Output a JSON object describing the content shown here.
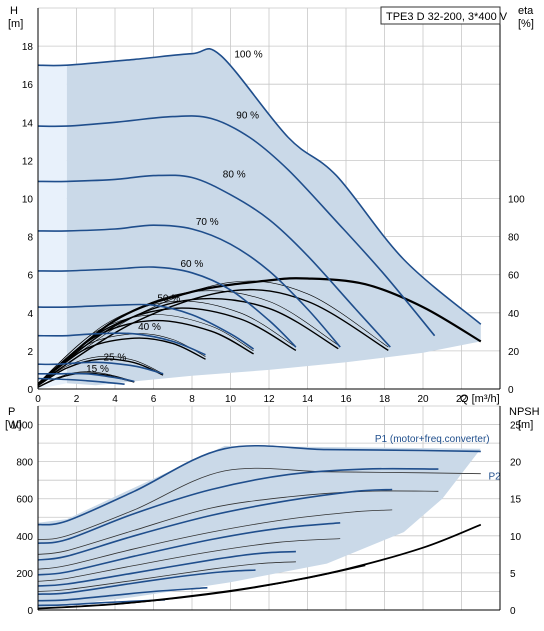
{
  "chart_data": [
    {
      "type": "line",
      "title": "TPE3 D 32-200, 3*400 V",
      "y_label": "H",
      "y_unit": "[m]",
      "y_right_label": "eta",
      "y_right_unit": "[%]",
      "x_label": "Q [m³/h]",
      "xlim": [
        0,
        24
      ],
      "ylim": [
        0,
        20
      ],
      "y_right_lim": [
        0,
        200
      ],
      "x_ticks": [
        "0",
        "2",
        "4",
        "6",
        "8",
        "10",
        "12",
        "14",
        "16",
        "18",
        "20",
        "22"
      ],
      "y_ticks": [
        "0",
        "2",
        "4",
        "6",
        "8",
        "10",
        "12",
        "14",
        "16",
        "18"
      ],
      "y_right_ticks": [
        "0",
        "20",
        "40",
        "60",
        "80",
        "100"
      ],
      "grid": true,
      "region_color": "#cad9e8",
      "region_light_color": "#e8f1fb",
      "curve_color": "#1f4e8c",
      "series": [
        {
          "label": "100 %",
          "label_q": 10.2,
          "label_h": 17.4,
          "x": [
            0,
            1.5,
            5,
            8,
            9.5,
            13,
            15.5,
            19,
            23
          ],
          "y": [
            17.0,
            17.0,
            17.3,
            17.6,
            17.5,
            13.2,
            11.2,
            6.8,
            3.4
          ]
        },
        {
          "label": "90 %",
          "label_q": 10.3,
          "label_h": 14.2,
          "x": [
            0,
            1.5,
            4,
            7,
            9,
            11,
            13,
            15.5,
            18,
            20.6
          ],
          "y": [
            13.8,
            13.8,
            14.0,
            14.3,
            14.2,
            13.2,
            11.5,
            8.8,
            6.0,
            2.8
          ]
        },
        {
          "label": "80 %",
          "label_q": 9.6,
          "label_h": 11.1,
          "x": [
            0,
            1.5,
            4,
            6,
            8,
            10,
            12,
            14,
            16.5,
            18.3
          ],
          "y": [
            10.9,
            10.9,
            11.0,
            11.2,
            11.1,
            10.2,
            8.9,
            7.0,
            4.2,
            2.2
          ]
        },
        {
          "label": "70 %",
          "label_q": 8.2,
          "label_h": 8.6,
          "x": [
            0,
            1.5,
            4,
            6,
            8,
            10,
            12,
            14,
            15.7
          ],
          "y": [
            8.3,
            8.3,
            8.4,
            8.6,
            8.4,
            7.6,
            6.2,
            4.2,
            2.2
          ]
        },
        {
          "label": "60 %",
          "label_q": 7.4,
          "label_h": 6.4,
          "x": [
            0,
            1.5,
            4,
            6,
            8,
            10,
            12,
            13.4
          ],
          "y": [
            6.2,
            6.2,
            6.3,
            6.4,
            6.1,
            5.2,
            3.6,
            2.2
          ]
        },
        {
          "label": "50 %",
          "label_q": 6.2,
          "label_h": 4.6,
          "x": [
            0,
            1.5,
            4,
            6,
            8,
            10,
            11.2
          ],
          "y": [
            4.3,
            4.3,
            4.4,
            4.4,
            3.9,
            2.9,
            2.1
          ]
        },
        {
          "label": "40 %",
          "label_q": 5.2,
          "label_h": 3.1,
          "x": [
            0,
            1.5,
            3,
            5,
            7,
            8.7
          ],
          "y": [
            2.8,
            2.8,
            2.9,
            2.9,
            2.5,
            1.8
          ]
        },
        {
          "label": "25 %",
          "label_q": 3.4,
          "label_h": 1.5,
          "x": [
            0,
            1,
            3,
            5,
            6.5
          ],
          "y": [
            1.3,
            1.3,
            1.4,
            1.2,
            0.8
          ]
        },
        {
          "label": "15 %",
          "label_q": 2.5,
          "label_h": 0.9,
          "x": [
            0,
            1,
            2.5,
            4,
            5
          ],
          "y": [
            0.8,
            0.8,
            0.8,
            0.6,
            0.4
          ]
        },
        {
          "label": "",
          "label_q": 0,
          "label_h": 0,
          "x": [
            0,
            1.5,
            3,
            4.5
          ],
          "y": [
            0.55,
            0.5,
            0.4,
            0.25
          ]
        }
      ],
      "eta_curves": [
        {
          "x": [
            0,
            5,
            10,
            14,
            18.2
          ],
          "y": [
            0.3,
            3.8,
            5.6,
            5.0,
            2.2
          ]
        },
        {
          "x": [
            0,
            4,
            8,
            12,
            15.6
          ],
          "y": [
            0.3,
            3.6,
            5.1,
            4.6,
            2.3
          ]
        },
        {
          "x": [
            0,
            3.5,
            7,
            10.5,
            13.4
          ],
          "y": [
            0.3,
            3.4,
            4.6,
            4.0,
            2.2
          ]
        },
        {
          "x": [
            0,
            3,
            6,
            9,
            11.2
          ],
          "y": [
            0.3,
            3.0,
            3.9,
            3.3,
            2.0
          ]
        },
        {
          "x": [
            0,
            2.5,
            5,
            7,
            8.7
          ],
          "y": [
            0.3,
            2.3,
            2.9,
            2.6,
            1.7
          ]
        },
        {
          "x": [
            0,
            1.5,
            3.2,
            5,
            6.5
          ],
          "y": [
            0.2,
            1.2,
            1.7,
            1.5,
            0.8
          ]
        },
        {
          "x": [
            0,
            1,
            2.2,
            3.5,
            5
          ],
          "y": [
            0.1,
            0.6,
            0.9,
            0.8,
            0.4
          ]
        }
      ],
      "eta_main": {
        "x": [
          0,
          4,
          8,
          12,
          14,
          17,
          20,
          23
        ],
        "y": [
          0.2,
          3.6,
          5.1,
          5.7,
          5.8,
          5.5,
          4.3,
          2.5
        ]
      }
    },
    {
      "type": "line",
      "y_label": "P",
      "y_unit": "[W]",
      "y_right_label": "NPSH",
      "y_right_unit": "[m]",
      "xlim": [
        0,
        24
      ],
      "ylim": [
        0,
        1100
      ],
      "y_right_lim": [
        0,
        27.5
      ],
      "y_ticks": [
        "0",
        "200",
        "400",
        "600",
        "800",
        "1000"
      ],
      "y_right_ticks": [
        "0",
        "5",
        "10",
        "15",
        "20",
        "25"
      ],
      "grid": true,
      "legend": [
        {
          "label": "P1 (motor+freq.converter)",
          "q": 17.5,
          "p": 905
        },
        {
          "label": "P2",
          "q": 23.4,
          "p": 705
        }
      ],
      "region_color": "#cad9e8",
      "curve_color": "#1f4e8c",
      "p1_curves": [
        {
          "x": [
            0,
            1.5,
            5,
            9.7,
            15,
            20,
            23
          ],
          "y": [
            460,
            480,
            640,
            870,
            865,
            860,
            855
          ]
        },
        {
          "x": [
            0,
            1.5,
            5,
            9,
            13,
            17,
            20.8
          ],
          "y": [
            360,
            380,
            520,
            650,
            730,
            760,
            760
          ]
        },
        {
          "x": [
            0,
            1.5,
            5,
            9,
            13,
            16.5,
            18.4
          ],
          "y": [
            270,
            290,
            400,
            510,
            590,
            640,
            650
          ]
        },
        {
          "x": [
            0,
            1.5,
            5,
            9,
            12.5,
            15.7
          ],
          "y": [
            190,
            205,
            290,
            380,
            440,
            470
          ]
        },
        {
          "x": [
            0,
            1.5,
            5,
            9,
            11.5,
            13.4
          ],
          "y": [
            130,
            140,
            200,
            270,
            305,
            315
          ]
        },
        {
          "x": [
            0,
            1.5,
            4,
            7,
            9.5,
            11.3
          ],
          "y": [
            85,
            92,
            130,
            175,
            205,
            215
          ]
        },
        {
          "x": [
            0,
            1.5,
            4,
            6,
            8.8
          ],
          "y": [
            50,
            55,
            80,
            100,
            120
          ]
        },
        {
          "x": [
            0,
            1.5,
            3.5,
            6.6
          ],
          "y": [
            25,
            28,
            40,
            55
          ]
        }
      ],
      "p2_curves": [
        {
          "x": [
            0,
            1.5,
            5,
            9.7,
            15,
            20,
            23
          ],
          "y": [
            380,
            400,
            540,
            750,
            745,
            740,
            735
          ]
        },
        {
          "x": [
            0,
            1.5,
            5,
            9,
            13,
            17,
            20.8
          ],
          "y": [
            300,
            320,
            430,
            550,
            610,
            640,
            640
          ]
        },
        {
          "x": [
            0,
            1.5,
            5,
            9,
            13,
            16.5,
            18.4
          ],
          "y": [
            220,
            240,
            330,
            420,
            490,
            530,
            540
          ]
        },
        {
          "x": [
            0,
            1.5,
            5,
            9,
            12.5,
            15.7
          ],
          "y": [
            155,
            170,
            240,
            315,
            365,
            385
          ]
        },
        {
          "x": [
            0,
            1.5,
            5,
            9,
            11.5,
            13.4
          ],
          "y": [
            100,
            110,
            160,
            220,
            250,
            260
          ]
        }
      ],
      "npsh_curve": {
        "x": [
          0,
          4,
          8,
          12,
          16,
          20,
          23
        ],
        "y": [
          0.2,
          0.8,
          1.9,
          3.4,
          5.5,
          8.4,
          11.5
        ]
      },
      "npsh_short": {
        "x": [
          0,
          5,
          10,
          14,
          17
        ],
        "y": [
          0.2,
          1.0,
          2.5,
          4.3,
          6.0
        ]
      },
      "region": {
        "x": [
          0,
          1.5,
          5,
          9.7,
          23,
          21,
          19,
          15,
          10,
          5,
          1.5,
          0
        ],
        "y": [
          470,
          490,
          660,
          885,
          870,
          600,
          420,
          250,
          150,
          70,
          25,
          10
        ]
      }
    }
  ]
}
